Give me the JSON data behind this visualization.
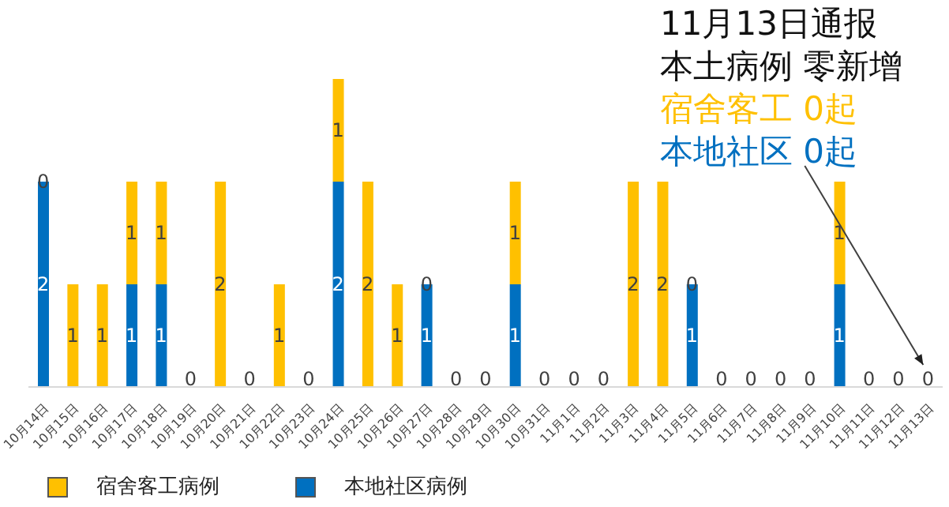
{
  "chart_data": {
    "type": "bar",
    "stacked": true,
    "title": "11月13日通报",
    "subtitle": "本土病例 零新增",
    "annotations": [
      "宿舍客工 0起",
      "本地社区 0起"
    ],
    "categories": [
      "10月14日",
      "10月15日",
      "10月16日",
      "10月17日",
      "10月18日",
      "10月19日",
      "10月20日",
      "10月21日",
      "10月22日",
      "10月23日",
      "10月24日",
      "10月25日",
      "10月26日",
      "10月27日",
      "10月28日",
      "10月29日",
      "10月30日",
      "10月31日",
      "11月1日",
      "11月2日",
      "11月3日",
      "11月4日",
      "11月5日",
      "11月6日",
      "11月7日",
      "11月8日",
      "11月9日",
      "11月10日",
      "11月11日",
      "11月12日",
      "11月13日"
    ],
    "series": [
      {
        "name": "本地社区病例",
        "color": "#0070c0",
        "values": [
          2,
          0,
          0,
          1,
          1,
          0,
          0,
          0,
          0,
          0,
          2,
          0,
          0,
          1,
          0,
          0,
          1,
          0,
          0,
          0,
          0,
          0,
          1,
          0,
          0,
          0,
          0,
          1,
          0,
          0,
          0
        ],
        "value_labels": [
          "2",
          null,
          null,
          "1",
          "1",
          "0",
          null,
          "0",
          null,
          "0",
          "2",
          null,
          null,
          "1",
          "0",
          "0",
          "1",
          "0",
          "0",
          "0",
          null,
          null,
          "1",
          "0",
          "0",
          "0",
          "0",
          "1",
          "0",
          "0",
          "0"
        ]
      },
      {
        "name": "宿舍客工病例",
        "color": "#ffc000",
        "values": [
          0,
          1,
          1,
          1,
          1,
          0,
          2,
          0,
          1,
          0,
          1,
          2,
          1,
          0,
          0,
          0,
          1,
          0,
          0,
          0,
          2,
          2,
          0,
          0,
          0,
          0,
          0,
          1,
          0,
          0,
          0
        ],
        "value_labels": [
          "0",
          "1",
          "1",
          "1",
          "1",
          null,
          "2",
          null,
          "1",
          null,
          "1",
          "2",
          "1",
          "0",
          null,
          null,
          "1",
          null,
          null,
          null,
          "2",
          "2",
          "0",
          null,
          null,
          null,
          null,
          "1",
          null,
          null,
          null
        ]
      }
    ],
    "legend": "bottom left",
    "grid": false,
    "relative": false
  }
}
